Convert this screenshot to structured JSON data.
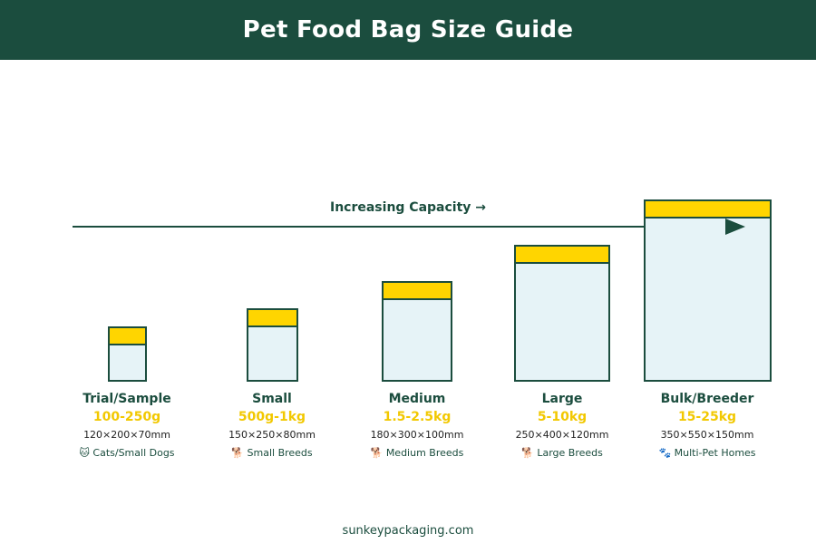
{
  "title": "Pet Food Bag Size Guide",
  "capacity_label": "Increasing Capacity →",
  "colors": {
    "header": "#1b4d3e",
    "accent": "#ffd500",
    "bag_fill": "#e6f3f7",
    "outline": "#1b4d3e"
  },
  "bags": [
    {
      "name": "Trial/Sample",
      "weight": "100-250g",
      "dimensions": "120×200×70mm",
      "use_icon": "cat-face-icon",
      "use_text": "🐱 Cats/Small Dogs"
    },
    {
      "name": "Small",
      "weight": "500g-1kg",
      "dimensions": "150×250×80mm",
      "use_icon": "small-dog-icon",
      "use_text": "🐕 Small Breeds"
    },
    {
      "name": "Medium",
      "weight": "1.5-2.5kg",
      "dimensions": "180×300×100mm",
      "use_icon": "dog-icon",
      "use_text": "🐕 Medium Breeds"
    },
    {
      "name": "Large",
      "weight": "5-10kg",
      "dimensions": "250×400×120mm",
      "use_icon": "large-dog-icon",
      "use_text": "🐕 Large Breeds"
    },
    {
      "name": "Bulk/Breeder",
      "weight": "15-25kg",
      "dimensions": "350×550×150mm",
      "use_icon": "paw-icon",
      "use_text": "🐾 Multi-Pet Homes"
    }
  ],
  "footer": "sunkeypackaging.com"
}
